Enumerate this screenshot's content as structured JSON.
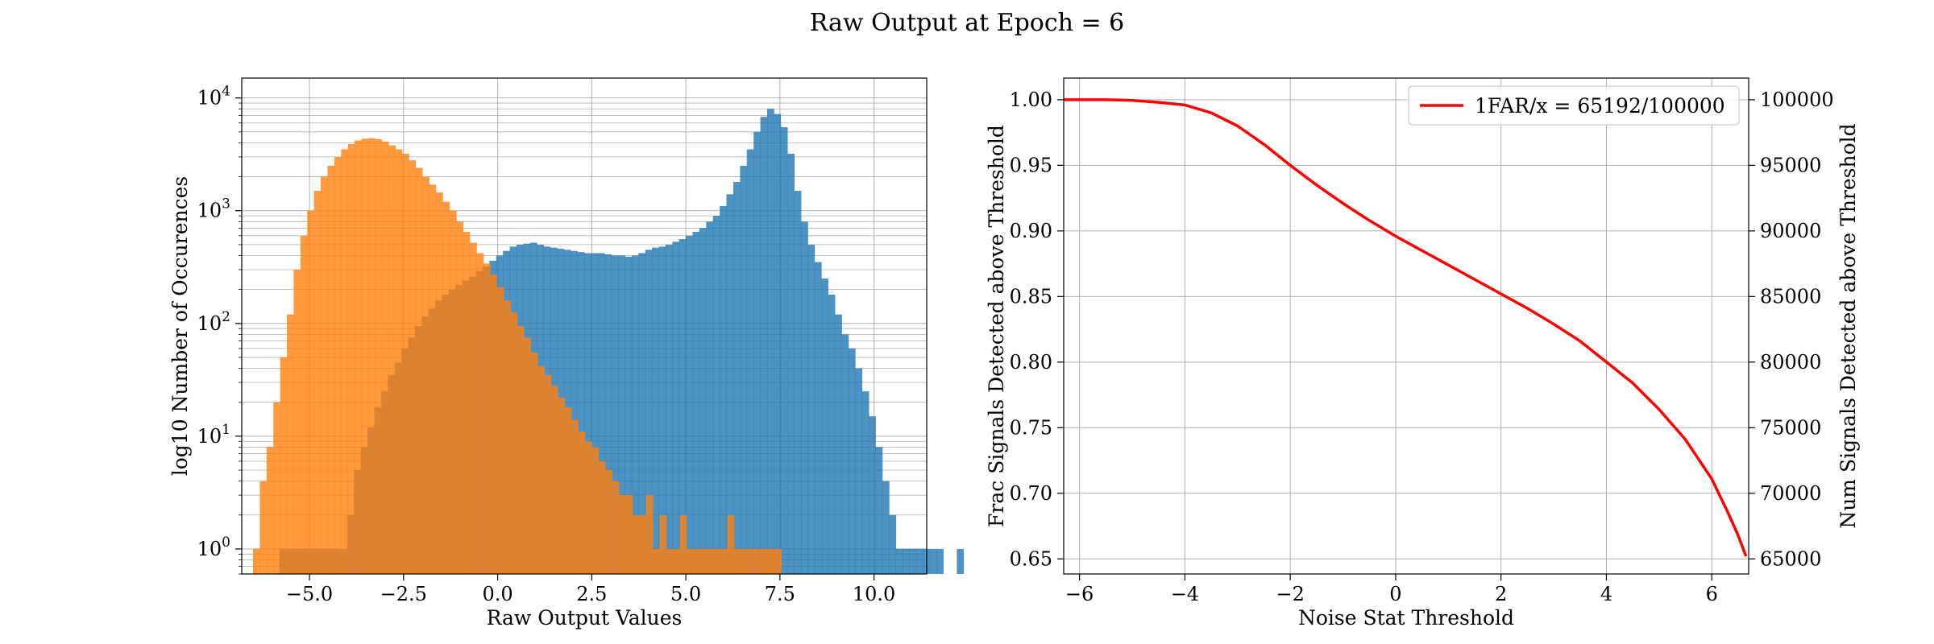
{
  "suptitle": "Raw Output at Epoch = 6",
  "chart_data": [
    {
      "type": "histogram",
      "xlabel": "Raw Output Values",
      "ylabel": "log10 Number of Occurences",
      "y_scale": "log",
      "xlim": [
        -6.8,
        11.4
      ],
      "ylim": [
        0.6,
        15000
      ],
      "grid": true,
      "x_ticks": [
        -5.0,
        -2.5,
        0.0,
        2.5,
        5.0,
        7.5,
        10.0
      ],
      "x_tick_labels": [
        "−5.0",
        "−2.5",
        "0.0",
        "2.5",
        "5.0",
        "7.5",
        "10.0"
      ],
      "y_ticks": [
        1,
        10,
        100,
        1000,
        10000
      ],
      "y_tick_labels": [
        {
          "base": "10",
          "exp": "0"
        },
        {
          "base": "10",
          "exp": "1"
        },
        {
          "base": "10",
          "exp": "2"
        },
        {
          "base": "10",
          "exp": "3"
        },
        {
          "base": "10",
          "exp": "4"
        }
      ],
      "bin_width": 0.18,
      "series": [
        {
          "color": "#1f77b4",
          "opacity": 0.8,
          "start": -5.8,
          "counts": [
            1,
            1,
            1,
            1,
            1,
            1,
            1,
            1,
            1,
            1,
            2,
            5,
            8,
            12,
            18,
            25,
            35,
            45,
            60,
            75,
            95,
            115,
            135,
            160,
            180,
            200,
            220,
            240,
            260,
            290,
            320,
            360,
            400,
            440,
            480,
            500,
            510,
            520,
            500,
            480,
            470,
            460,
            450,
            440,
            430,
            420,
            420,
            420,
            410,
            400,
            400,
            390,
            400,
            420,
            450,
            470,
            480,
            500,
            530,
            560,
            600,
            650,
            700,
            800,
            900,
            1100,
            1400,
            1800,
            2500,
            3500,
            5000,
            6800,
            8000,
            7200,
            5500,
            3200,
            1500,
            800,
            500,
            350,
            250,
            180,
            120,
            80,
            60,
            40,
            25,
            15,
            8,
            4,
            2,
            1,
            1,
            1,
            1,
            1,
            1,
            1,
            0,
            0,
            1
          ]
        },
        {
          "color": "#ff7f0e",
          "opacity": 0.8,
          "start": -6.5,
          "counts": [
            1,
            4,
            8,
            20,
            50,
            120,
            300,
            600,
            1000,
            1500,
            2000,
            2500,
            3000,
            3500,
            3900,
            4200,
            4350,
            4400,
            4300,
            4100,
            3800,
            3500,
            3200,
            2800,
            2400,
            2000,
            1700,
            1450,
            1200,
            1000,
            800,
            650,
            520,
            420,
            340,
            270,
            210,
            160,
            125,
            95,
            75,
            55,
            42,
            35,
            28,
            22,
            18,
            14,
            11,
            9,
            8,
            6,
            5,
            4,
            3,
            3,
            2,
            2,
            3,
            1,
            2,
            1,
            1,
            2,
            1,
            1,
            1,
            1,
            1,
            1,
            2,
            1,
            1,
            1,
            1,
            1,
            1,
            1
          ]
        }
      ]
    },
    {
      "type": "line",
      "xlabel": "Noise Stat Threshold",
      "ylabel": "Frac Signals Detected above Threshold",
      "ylabel_right": "Num Signals Detected above Threshold",
      "xlim": [
        -6.3,
        6.7
      ],
      "ylim": [
        0.6385,
        1.0165
      ],
      "grid": true,
      "x_ticks": [
        -6,
        -4,
        -2,
        0,
        2,
        4,
        6
      ],
      "x_tick_labels": [
        "−6",
        "−4",
        "−2",
        "0",
        "2",
        "4",
        "6"
      ],
      "y_ticks": [
        0.65,
        0.7,
        0.75,
        0.8,
        0.85,
        0.9,
        0.95,
        1.0
      ],
      "y_tick_labels": [
        "0.65",
        "0.70",
        "0.75",
        "0.80",
        "0.85",
        "0.90",
        "0.95",
        "1.00"
      ],
      "y2_ticks": [
        65000,
        70000,
        75000,
        80000,
        85000,
        90000,
        95000,
        100000
      ],
      "y2_tick_labels": [
        "65000",
        "70000",
        "75000",
        "80000",
        "85000",
        "90000",
        "95000",
        "100000"
      ],
      "legend_position": "top-right",
      "series": [
        {
          "name": "1FAR/x = 65192/100000",
          "color": "#ff0000",
          "x": [
            -6.3,
            -6.0,
            -5.5,
            -5.0,
            -4.5,
            -4.0,
            -3.5,
            -3.0,
            -2.5,
            -2.0,
            -1.5,
            -1.0,
            -0.5,
            0.0,
            0.5,
            1.0,
            1.5,
            2.0,
            2.5,
            3.0,
            3.5,
            4.0,
            4.5,
            5.0,
            5.5,
            6.0,
            6.3,
            6.5,
            6.65
          ],
          "y": [
            1.0,
            1.0,
            1.0,
            0.9995,
            0.998,
            0.996,
            0.99,
            0.98,
            0.966,
            0.95,
            0.935,
            0.921,
            0.908,
            0.896,
            0.885,
            0.874,
            0.863,
            0.852,
            0.841,
            0.829,
            0.816,
            0.8,
            0.784,
            0.764,
            0.741,
            0.711,
            0.686,
            0.668,
            0.652
          ]
        }
      ]
    }
  ]
}
